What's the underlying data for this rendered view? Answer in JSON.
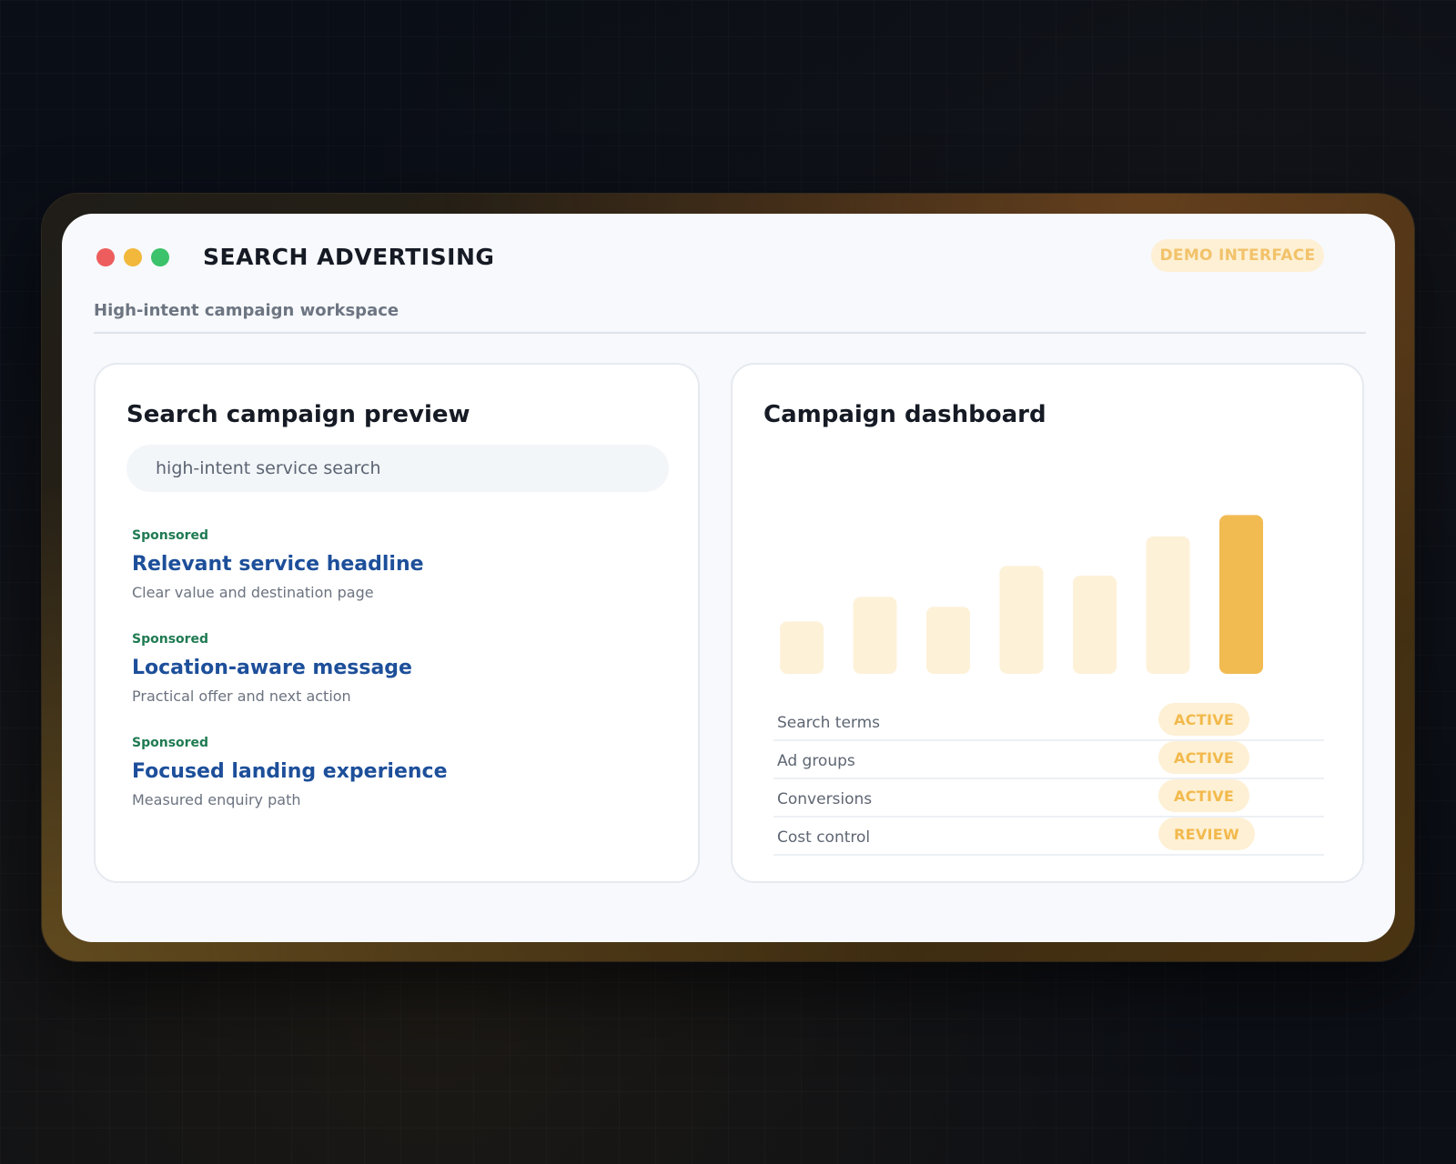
{
  "window": {
    "title": "SEARCH ADVERTISING",
    "badge": "DEMO INTERFACE",
    "subtitle": "High-intent campaign workspace"
  },
  "preview": {
    "title": "Search campaign preview",
    "search_value": "high-intent service search",
    "ads": [
      {
        "sponsored": "Sponsored",
        "headline": "Relevant service headline",
        "description": "Clear value and destination page"
      },
      {
        "sponsored": "Sponsored",
        "headline": "Location-aware message",
        "description": "Practical offer and next action"
      },
      {
        "sponsored": "Sponsored",
        "headline": "Focused landing experience",
        "description": "Measured enquiry path"
      }
    ]
  },
  "dashboard": {
    "title": "Campaign dashboard",
    "rows": [
      {
        "label": "Search terms",
        "status": "ACTIVE"
      },
      {
        "label": "Ad groups",
        "status": "ACTIVE"
      },
      {
        "label": "Conversions",
        "status": "ACTIVE"
      },
      {
        "label": "Cost control",
        "status": "REVIEW"
      }
    ]
  },
  "colors": {
    "bar_muted": "#fdf1d8",
    "bar_highlight": "#f1bb52",
    "accent_link": "#1d4f9a",
    "sponsored_green": "#1f7a52"
  },
  "chart_data": {
    "type": "bar",
    "values": [
      32,
      47,
      41,
      66,
      60,
      84,
      97
    ],
    "highlight_index": 6,
    "ylim": [
      0,
      100
    ]
  }
}
